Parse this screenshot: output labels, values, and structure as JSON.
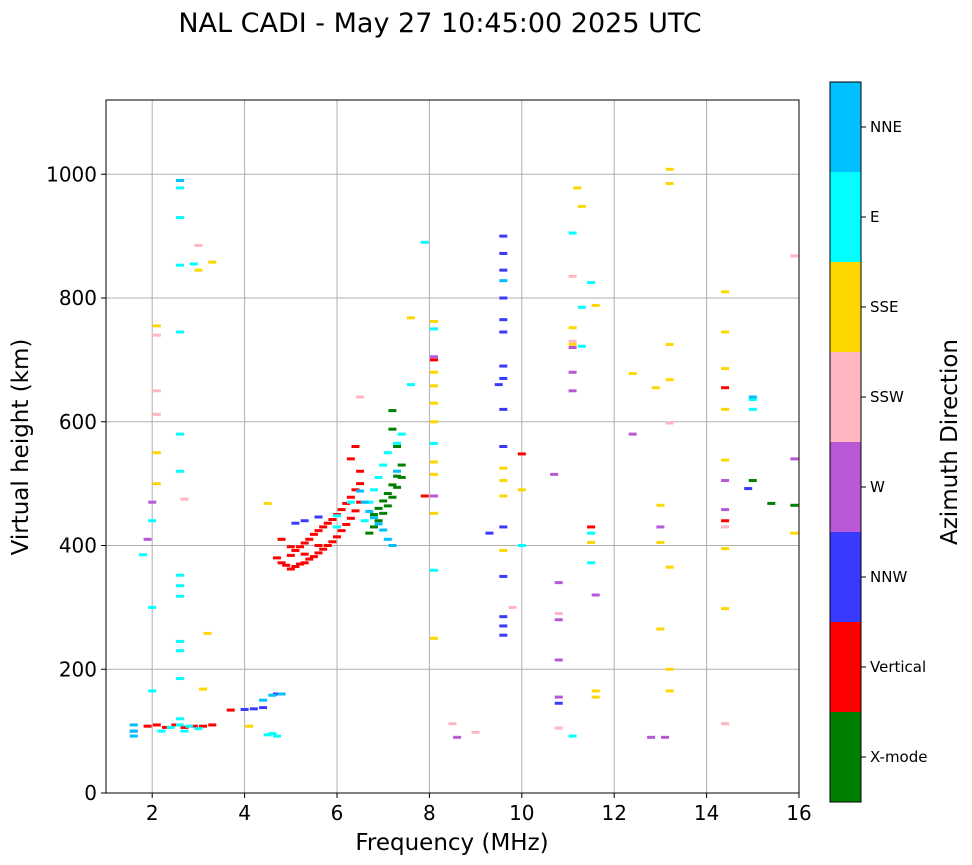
{
  "chart_data": {
    "type": "scatter",
    "title": "NAL CADI - May 27 10:45:00 2025 UTC",
    "xlabel": "Frequency (MHz)",
    "ylabel": "Virtual height (km)",
    "xlim": [
      1,
      16
    ],
    "ylim": [
      0,
      1120
    ],
    "xticks": [
      2,
      4,
      6,
      8,
      10,
      12,
      14,
      16
    ],
    "yticks": [
      0,
      200,
      400,
      600,
      800,
      1000
    ],
    "grid": true,
    "colorbar": {
      "label": "Azimuth Direction",
      "categories": [
        {
          "name": "X-mode",
          "color": "#008000"
        },
        {
          "name": "Vertical",
          "color": "#ff0000"
        },
        {
          "name": "NNW",
          "color": "#3a3aff"
        },
        {
          "name": "W",
          "color": "#b958d6"
        },
        {
          "name": "SSW",
          "color": "#ffb6c1"
        },
        {
          "name": "SSE",
          "color": "#ffd700"
        },
        {
          "name": "E",
          "color": "#00ffff"
        },
        {
          "name": "NNE",
          "color": "#00bfff"
        }
      ]
    },
    "series": [
      {
        "name": "Vertical",
        "points": [
          [
            1.9,
            108
          ],
          [
            2.1,
            110
          ],
          [
            2.3,
            106
          ],
          [
            2.5,
            110
          ],
          [
            2.7,
            106
          ],
          [
            2.9,
            108
          ],
          [
            3.1,
            108
          ],
          [
            3.3,
            110
          ],
          [
            3.7,
            134
          ],
          [
            4.7,
            380
          ],
          [
            4.8,
            372
          ],
          [
            4.9,
            368
          ],
          [
            5.0,
            362
          ],
          [
            5.0,
            384
          ],
          [
            5.1,
            366
          ],
          [
            5.1,
            392
          ],
          [
            5.2,
            370
          ],
          [
            5.2,
            398
          ],
          [
            5.3,
            372
          ],
          [
            5.3,
            404
          ],
          [
            5.4,
            378
          ],
          [
            5.4,
            410
          ],
          [
            5.5,
            382
          ],
          [
            5.5,
            418
          ],
          [
            5.6,
            388
          ],
          [
            5.6,
            424
          ],
          [
            5.7,
            394
          ],
          [
            5.7,
            430
          ],
          [
            5.8,
            400
          ],
          [
            5.8,
            436
          ],
          [
            5.9,
            406
          ],
          [
            5.9,
            442
          ],
          [
            6.0,
            414
          ],
          [
            6.0,
            450
          ],
          [
            6.1,
            424
          ],
          [
            6.1,
            458
          ],
          [
            6.2,
            434
          ],
          [
            6.2,
            468
          ],
          [
            6.3,
            444
          ],
          [
            6.3,
            478
          ],
          [
            6.4,
            456
          ],
          [
            6.4,
            490
          ],
          [
            6.5,
            470
          ],
          [
            6.5,
            500
          ],
          [
            6.5,
            520
          ],
          [
            5.0,
            398
          ],
          [
            4.8,
            410
          ],
          [
            5.3,
            386
          ],
          [
            5.6,
            400
          ],
          [
            6.3,
            540
          ],
          [
            6.4,
            560
          ],
          [
            7.9,
            480
          ],
          [
            8.1,
            700
          ],
          [
            10.0,
            548
          ],
          [
            11.5,
            430
          ],
          [
            14.4,
            440
          ],
          [
            14.4,
            655
          ]
        ]
      },
      {
        "name": "X-mode",
        "points": [
          [
            6.7,
            420
          ],
          [
            6.8,
            430
          ],
          [
            6.8,
            450
          ],
          [
            6.9,
            440
          ],
          [
            6.9,
            460
          ],
          [
            7.0,
            452
          ],
          [
            7.0,
            472
          ],
          [
            7.1,
            464
          ],
          [
            7.1,
            484
          ],
          [
            7.2,
            478
          ],
          [
            7.2,
            498
          ],
          [
            7.3,
            494
          ],
          [
            7.3,
            512
          ],
          [
            7.4,
            510
          ],
          [
            7.4,
            530
          ],
          [
            7.3,
            560
          ],
          [
            7.2,
            588
          ],
          [
            7.2,
            618
          ],
          [
            15.0,
            505
          ],
          [
            15.4,
            468
          ],
          [
            15.9,
            465
          ]
        ]
      },
      {
        "name": "NNW",
        "points": [
          [
            1.6,
            100
          ],
          [
            4.0,
            135
          ],
          [
            4.2,
            136
          ],
          [
            4.4,
            138
          ],
          [
            4.7,
            160
          ],
          [
            5.1,
            436
          ],
          [
            5.3,
            440
          ],
          [
            5.6,
            446
          ],
          [
            9.6,
            900
          ],
          [
            9.6,
            872
          ],
          [
            9.6,
            845
          ],
          [
            9.6,
            800
          ],
          [
            9.6,
            765
          ],
          [
            9.6,
            745
          ],
          [
            9.6,
            690
          ],
          [
            9.6,
            670
          ],
          [
            9.6,
            620
          ],
          [
            9.6,
            560
          ],
          [
            9.6,
            430
          ],
          [
            9.6,
            350
          ],
          [
            9.6,
            285
          ],
          [
            9.6,
            270
          ],
          [
            9.6,
            255
          ],
          [
            9.5,
            660
          ],
          [
            9.3,
            420
          ],
          [
            10.8,
            145
          ],
          [
            14.9,
            492
          ]
        ]
      },
      {
        "name": "W",
        "points": [
          [
            1.9,
            410
          ],
          [
            2.0,
            470
          ],
          [
            8.1,
            705
          ],
          [
            8.1,
            480
          ],
          [
            8.6,
            90
          ],
          [
            10.7,
            515
          ],
          [
            10.8,
            340
          ],
          [
            10.8,
            280
          ],
          [
            10.8,
            215
          ],
          [
            10.8,
            155
          ],
          [
            11.1,
            720
          ],
          [
            11.1,
            650
          ],
          [
            11.1,
            680
          ],
          [
            11.6,
            320
          ],
          [
            12.4,
            580
          ],
          [
            12.8,
            90
          ],
          [
            13.0,
            430
          ],
          [
            13.1,
            90
          ],
          [
            14.4,
            505
          ],
          [
            14.4,
            458
          ],
          [
            15.9,
            540
          ]
        ]
      },
      {
        "name": "SSW",
        "points": [
          [
            2.1,
            650
          ],
          [
            2.1,
            740
          ],
          [
            2.1,
            612
          ],
          [
            2.7,
            475
          ],
          [
            3.0,
            885
          ],
          [
            6.5,
            640
          ],
          [
            8.5,
            112
          ],
          [
            9.0,
            98
          ],
          [
            9.8,
            300
          ],
          [
            10.8,
            290
          ],
          [
            10.8,
            105
          ],
          [
            11.1,
            835
          ],
          [
            11.1,
            730
          ],
          [
            13.2,
            598
          ],
          [
            14.4,
            112
          ],
          [
            14.4,
            430
          ],
          [
            15.9,
            868
          ]
        ]
      },
      {
        "name": "SSE",
        "points": [
          [
            2.1,
            755
          ],
          [
            2.1,
            550
          ],
          [
            2.1,
            500
          ],
          [
            3.0,
            845
          ],
          [
            3.3,
            858
          ],
          [
            3.1,
            168
          ],
          [
            3.2,
            258
          ],
          [
            4.1,
            108
          ],
          [
            4.5,
            468
          ],
          [
            7.6,
            768
          ],
          [
            8.1,
            762
          ],
          [
            8.1,
            680
          ],
          [
            8.1,
            658
          ],
          [
            8.1,
            630
          ],
          [
            8.1,
            600
          ],
          [
            8.1,
            535
          ],
          [
            8.1,
            515
          ],
          [
            8.1,
            452
          ],
          [
            8.1,
            250
          ],
          [
            9.6,
            525
          ],
          [
            9.6,
            505
          ],
          [
            9.6,
            480
          ],
          [
            9.6,
            392
          ],
          [
            10.0,
            490
          ],
          [
            11.2,
            978
          ],
          [
            11.3,
            948
          ],
          [
            11.1,
            752
          ],
          [
            11.1,
            725
          ],
          [
            11.5,
            405
          ],
          [
            11.6,
            165
          ],
          [
            11.6,
            155
          ],
          [
            11.6,
            788
          ],
          [
            12.4,
            678
          ],
          [
            12.9,
            655
          ],
          [
            13.0,
            465
          ],
          [
            13.0,
            405
          ],
          [
            13.0,
            265
          ],
          [
            13.2,
            1008
          ],
          [
            13.2,
            985
          ],
          [
            13.2,
            725
          ],
          [
            13.2,
            668
          ],
          [
            13.2,
            365
          ],
          [
            13.2,
            200
          ],
          [
            13.2,
            165
          ],
          [
            14.4,
            810
          ],
          [
            14.4,
            745
          ],
          [
            14.4,
            686
          ],
          [
            14.4,
            620
          ],
          [
            14.4,
            538
          ],
          [
            14.4,
            395
          ],
          [
            14.4,
            298
          ],
          [
            15.9,
            420
          ]
        ]
      },
      {
        "name": "E",
        "points": [
          [
            2.6,
            978
          ],
          [
            2.6,
            930
          ],
          [
            2.6,
            853
          ],
          [
            2.9,
            855
          ],
          [
            2.6,
            745
          ],
          [
            2.6,
            580
          ],
          [
            2.6,
            520
          ],
          [
            2.6,
            352
          ],
          [
            2.6,
            335
          ],
          [
            2.6,
            318
          ],
          [
            2.6,
            245
          ],
          [
            2.6,
            230
          ],
          [
            2.6,
            185
          ],
          [
            2.6,
            120
          ],
          [
            2.0,
            440
          ],
          [
            2.0,
            300
          ],
          [
            1.8,
            385
          ],
          [
            2.0,
            165
          ],
          [
            2.2,
            100
          ],
          [
            2.4,
            106
          ],
          [
            2.6,
            110
          ],
          [
            2.7,
            100
          ],
          [
            2.8,
            108
          ],
          [
            3.0,
            104
          ],
          [
            4.5,
            94
          ],
          [
            4.6,
            96
          ],
          [
            4.7,
            92
          ],
          [
            6.0,
            430
          ],
          [
            6.0,
            448
          ],
          [
            6.3,
            470
          ],
          [
            6.6,
            440
          ],
          [
            6.7,
            470
          ],
          [
            6.8,
            490
          ],
          [
            6.9,
            510
          ],
          [
            7.0,
            530
          ],
          [
            7.1,
            550
          ],
          [
            7.3,
            565
          ],
          [
            7.4,
            580
          ],
          [
            7.6,
            660
          ],
          [
            7.9,
            890
          ],
          [
            8.1,
            750
          ],
          [
            8.1,
            565
          ],
          [
            8.1,
            360
          ],
          [
            10.0,
            400
          ],
          [
            11.1,
            905
          ],
          [
            11.3,
            785
          ],
          [
            11.3,
            722
          ],
          [
            11.5,
            825
          ],
          [
            11.5,
            420
          ],
          [
            11.5,
            372
          ],
          [
            11.1,
            92
          ],
          [
            15.0,
            620
          ],
          [
            15.0,
            636
          ]
        ]
      },
      {
        "name": "NNE",
        "points": [
          [
            2.6,
            990
          ],
          [
            1.6,
            100
          ],
          [
            1.6,
            92
          ],
          [
            1.6,
            110
          ],
          [
            4.8,
            160
          ],
          [
            4.6,
            158
          ],
          [
            4.4,
            150
          ],
          [
            6.5,
            488
          ],
          [
            6.6,
            470
          ],
          [
            6.7,
            455
          ],
          [
            6.8,
            445
          ],
          [
            6.9,
            435
          ],
          [
            7.0,
            425
          ],
          [
            7.1,
            410
          ],
          [
            7.2,
            400
          ],
          [
            7.3,
            520
          ],
          [
            9.6,
            828
          ],
          [
            15.0,
            640
          ]
        ]
      }
    ]
  }
}
